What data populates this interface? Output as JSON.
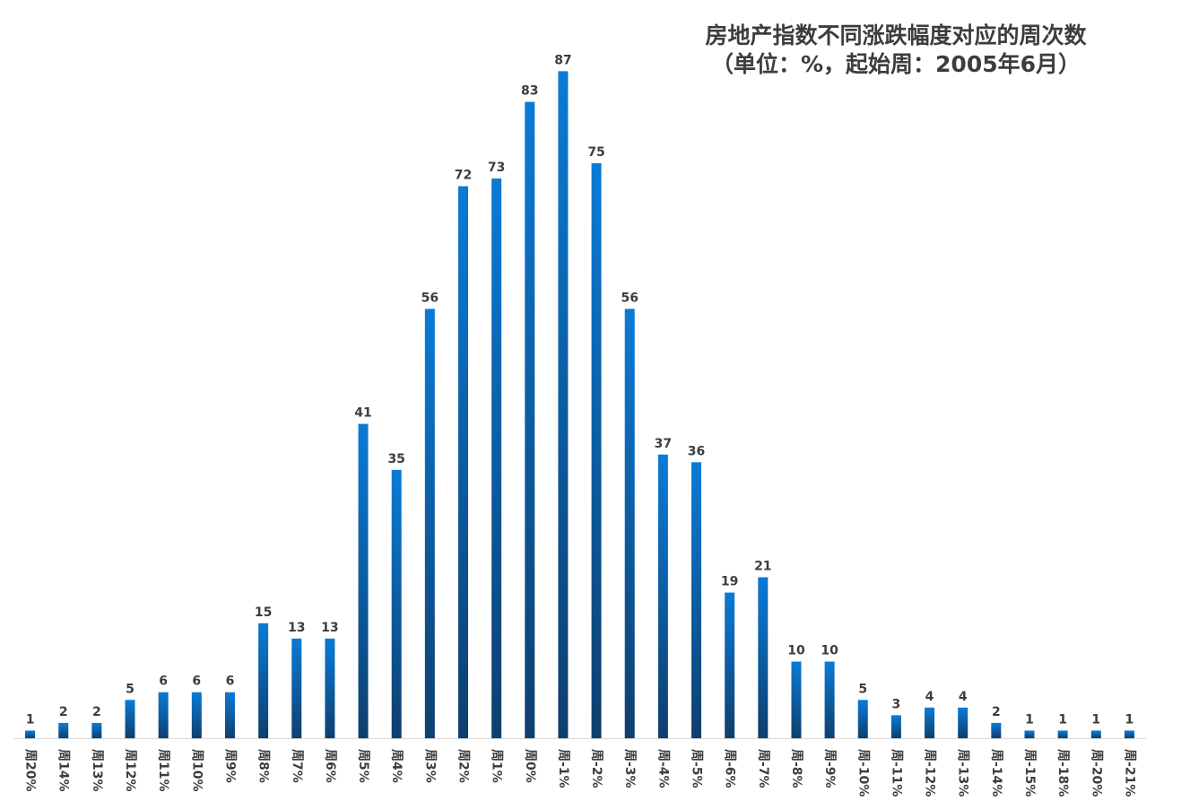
{
  "chart_data": {
    "type": "bar",
    "title": "房地产指数不同涨跌幅度对应的周次数",
    "subtitle": "（单位：%，起始周：2005年6月）",
    "xlabel": "",
    "ylabel": "",
    "ylim": [
      0,
      95
    ],
    "grid": false,
    "legend": "none",
    "bar_color_top": "#0a7bd6",
    "bar_color_bottom": "#0e3f6e",
    "categories": [
      "周20%",
      "周14%",
      "周13%",
      "周12%",
      "周11%",
      "周10%",
      "周9%",
      "周8%",
      "周7%",
      "周6%",
      "周5%",
      "周4%",
      "周3%",
      "周2%",
      "周1%",
      "周0%",
      "周-1%",
      "周-2%",
      "周-3%",
      "周-4%",
      "周-5%",
      "周-6%",
      "周-7%",
      "周-8%",
      "周-9%",
      "周-10%",
      "周-11%",
      "周-12%",
      "周-13%",
      "周-14%",
      "周-15%",
      "周-18%",
      "周-20%",
      "周-21%"
    ],
    "values": [
      1,
      2,
      2,
      5,
      6,
      6,
      6,
      15,
      13,
      13,
      41,
      35,
      56,
      72,
      73,
      83,
      87,
      75,
      56,
      37,
      36,
      19,
      21,
      10,
      10,
      5,
      3,
      4,
      4,
      2,
      1,
      1,
      1,
      1
    ]
  }
}
